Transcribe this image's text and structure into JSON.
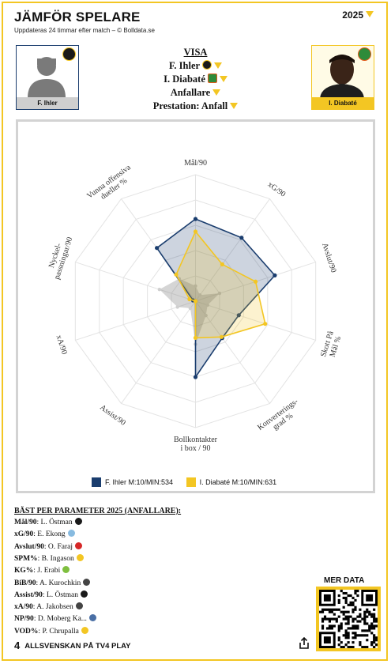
{
  "header": {
    "title": "JÄMFÖR SPELARE",
    "subtitle": "Uppdateras 24 timmar efter match – © Bolldata.se",
    "year": "2025"
  },
  "players": {
    "left": {
      "name": "F. Ihler",
      "color": "#1a3d6e"
    },
    "right": {
      "name": "I. Diabaté",
      "color": "#f3c623"
    }
  },
  "visa": {
    "label": "VISA",
    "player1": "F. Ihler",
    "player2": "I. Diabaté",
    "position": "Anfallare",
    "prestation": "Prestation: Anfall"
  },
  "chart_data": {
    "type": "radar",
    "axes": [
      "Mål/90",
      "xG/90",
      "Avslut/90",
      "Skott På Mål %",
      "Konverterings-grad %",
      "Bollkontakter i box / 90",
      "Assist/90",
      "xA/90",
      "Nyckel-passningar/90",
      "Vunna offensiva dueller %"
    ],
    "rmax": 10,
    "series": [
      {
        "name": "F. Ihler M:10/MIN:534",
        "color": "#1a3d6e",
        "values": [
          6.5,
          6.2,
          6.6,
          3.6,
          3.6,
          6.0,
          0,
          0,
          0.2,
          5.2
        ]
      },
      {
        "name": "I. Diabaté M:10/MIN:631",
        "color": "#f3c623",
        "values": [
          5.5,
          3.6,
          5.0,
          5.8,
          3.5,
          2.9,
          0,
          0,
          0.5,
          2.6
        ]
      },
      {
        "name": "",
        "color": "#888888",
        "values": [
          1.2,
          0.6,
          2.0,
          1.0,
          1.4,
          3.4,
          0.7,
          1.5,
          3.0,
          2.2
        ]
      }
    ]
  },
  "best": {
    "title": "BÄST PER PARAMETER 2025 (ANFALLARE):",
    "rows": [
      {
        "param": "Mål/90",
        "player": "L. Östman",
        "color": "#1a1a1a"
      },
      {
        "param": "xG/90",
        "player": "E. Ekong",
        "color": "#88bbe0"
      },
      {
        "param": "Avslut/90",
        "player": "O. Faraj",
        "color": "#d62828"
      },
      {
        "param": "SPM%",
        "player": "B. Ingason",
        "color": "#f3c623"
      },
      {
        "param": "KG%",
        "player": "J. Erabi",
        "color": "#7fbf3f"
      },
      {
        "param": "BiB/90",
        "player": "A. Kurochkin",
        "color": "#444444"
      },
      {
        "param": "Assist/90",
        "player": "L. Östman",
        "color": "#1a1a1a"
      },
      {
        "param": "xA/90",
        "player": "A. Jakobsen",
        "color": "#444444"
      },
      {
        "param": "NP/90",
        "player": "D. Moberg Ka...",
        "color": "#4a6fa5"
      },
      {
        "param": "VOD%",
        "player": "P. Chrupalla",
        "color": "#f3c623"
      }
    ]
  },
  "merdata": "MER DATA",
  "footer": {
    "logo": "4",
    "text": "ALLSVENSKAN PÅ TV4 PLAY"
  }
}
